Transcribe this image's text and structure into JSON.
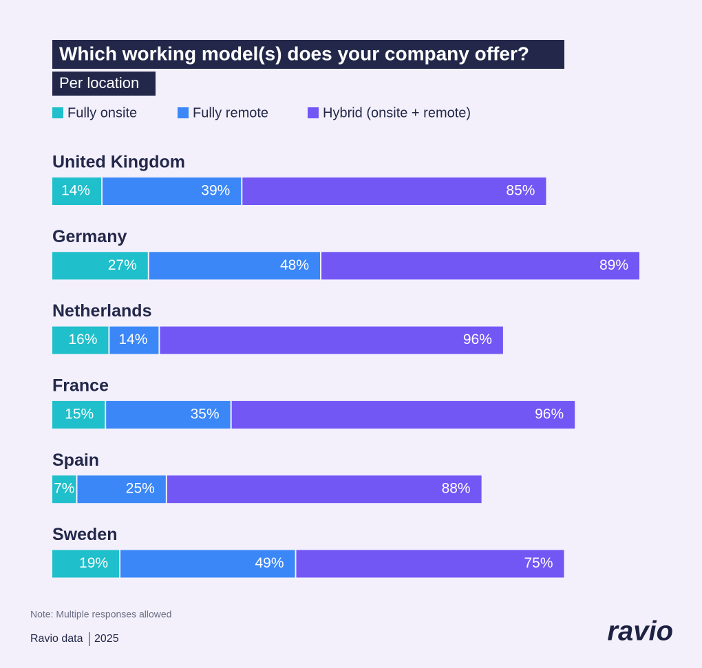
{
  "chart_data": {
    "type": "stacked-bar-horizontal",
    "title": "Which working model(s) does your company offer?",
    "subtitle": "Per location",
    "categories": [
      "United Kingdom",
      "Germany",
      "Netherlands",
      "France",
      "Spain",
      "Sweden"
    ],
    "series": [
      {
        "name": "Fully onsite",
        "color": "#1fbfcb",
        "values": [
          14,
          27,
          16,
          15,
          7,
          19
        ],
        "value_labels": [
          "14%",
          "27%",
          "16%",
          "15%",
          "7%",
          "19%"
        ]
      },
      {
        "name": "Fully remote",
        "color": "#3b87f7",
        "values": [
          39,
          48,
          14,
          35,
          25,
          49
        ],
        "value_labels": [
          "39%",
          "48%",
          "14%",
          "35%",
          "25%",
          "49%"
        ]
      },
      {
        "name": "Hybrid (onsite + remote)",
        "color": "#7257f5",
        "values": [
          85,
          89,
          96,
          96,
          88,
          75
        ],
        "value_labels": [
          "85%",
          "89%",
          "96%",
          "96%",
          "88%",
          "75%"
        ]
      }
    ],
    "note": "Note: Multiple responses allowed",
    "source": "Ravio data",
    "year": "2025",
    "logo": "ravio"
  }
}
